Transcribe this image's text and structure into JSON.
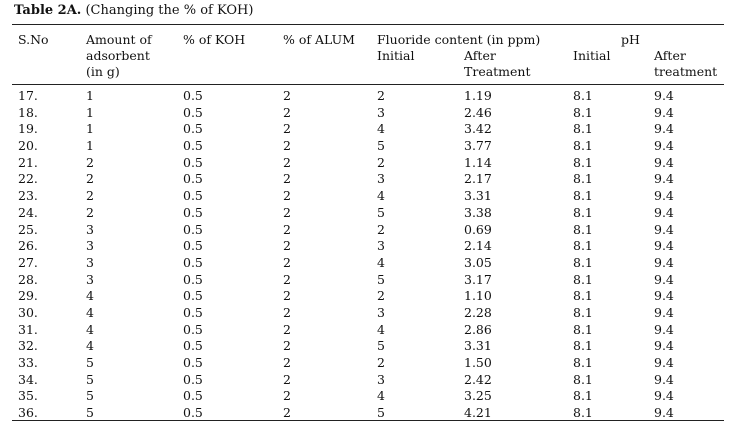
{
  "caption": {
    "label": "Table 2A.",
    "text": "(Changing the % of KOH)"
  },
  "headers": {
    "sno": "S.No",
    "amount_line1": "Amount of",
    "amount_line2": "adsorbent",
    "amount_line3": "(in g)",
    "koh": "% of KOH",
    "alum": "% of ALUM",
    "fluoride_group": "Fluoride content (in ppm)",
    "fluoride_initial": "Initial",
    "fluoride_after_line1": "After",
    "fluoride_after_line2": "Treatment",
    "ph_group": "pH",
    "ph_initial": "Initial",
    "ph_after_line1": "After",
    "ph_after_line2": "treatment"
  },
  "rows": [
    [
      "17.",
      "1",
      "0.5",
      "2",
      "2",
      "1.19",
      "8.1",
      "9.4"
    ],
    [
      "18.",
      "1",
      "0.5",
      "2",
      "3",
      "2.46",
      "8.1",
      "9.4"
    ],
    [
      "19.",
      "1",
      "0.5",
      "2",
      "4",
      "3.42",
      "8.1",
      "9.4"
    ],
    [
      "20.",
      "1",
      "0.5",
      "2",
      "5",
      "3.77",
      "8.1",
      "9.4"
    ],
    [
      "21.",
      "2",
      "0.5",
      "2",
      "2",
      "1.14",
      "8.1",
      "9.4"
    ],
    [
      "22.",
      "2",
      "0.5",
      "2",
      "3",
      "2.17",
      "8.1",
      "9.4"
    ],
    [
      "23.",
      "2",
      "0.5",
      "2",
      "4",
      "3.31",
      "8.1",
      "9.4"
    ],
    [
      "24.",
      "2",
      "0.5",
      "2",
      "5",
      "3.38",
      "8.1",
      "9.4"
    ],
    [
      "25.",
      "3",
      "0.5",
      "2",
      "2",
      "0.69",
      "8.1",
      "9.4"
    ],
    [
      "26.",
      "3",
      "0.5",
      "2",
      "3",
      "2.14",
      "8.1",
      "9.4"
    ],
    [
      "27.",
      "3",
      "0.5",
      "2",
      "4",
      "3.05",
      "8.1",
      "9.4"
    ],
    [
      "28.",
      "3",
      "0.5",
      "2",
      "5",
      "3.17",
      "8.1",
      "9.4"
    ],
    [
      "29.",
      "4",
      "0.5",
      "2",
      "2",
      "1.10",
      "8.1",
      "9.4"
    ],
    [
      "30.",
      "4",
      "0.5",
      "2",
      "3",
      "2.28",
      "8.1",
      "9.4"
    ],
    [
      "31.",
      "4",
      "0.5",
      "2",
      "4",
      "2.86",
      "8.1",
      "9.4"
    ],
    [
      "32.",
      "4",
      "0.5",
      "2",
      "5",
      "3.31",
      "8.1",
      "9.4"
    ],
    [
      "33.",
      "5",
      "0.5",
      "2",
      "2",
      "1.50",
      "8.1",
      "9.4"
    ],
    [
      "34.",
      "5",
      "0.5",
      "2",
      "3",
      "2.42",
      "8.1",
      "9.4"
    ],
    [
      "35.",
      "5",
      "0.5",
      "2",
      "4",
      "3.25",
      "8.1",
      "9.4"
    ],
    [
      "36.",
      "5",
      "0.5",
      "2",
      "5",
      "4.21",
      "8.1",
      "9.4"
    ]
  ]
}
